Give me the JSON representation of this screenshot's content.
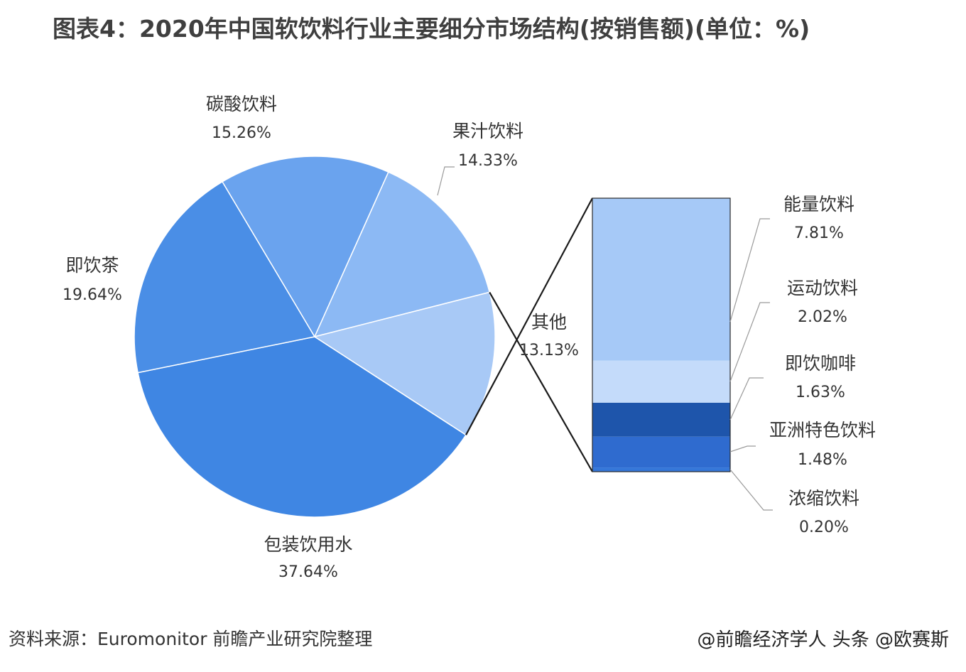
{
  "title": "图表4：2020年中国软饮料行业主要细分市场结构(按销售额)(单位：%)",
  "source": "资料来源：Euromonitor 前瞻产业研究院整理",
  "credit": "@前瞻经济学人 头条 @欧赛斯",
  "chart_data": {
    "type": "pie",
    "pie": {
      "slices": [
        {
          "label": "包装饮用水",
          "value": 37.64,
          "value_text": "37.64%",
          "color": "#3f86e3"
        },
        {
          "label": "即饮茶",
          "value": 19.64,
          "value_text": "19.64%",
          "color": "#4a8ee6"
        },
        {
          "label": "碳酸饮料",
          "value": 15.26,
          "value_text": "15.26%",
          "color": "#6aa3ee"
        },
        {
          "label": "果汁饮料",
          "value": 14.33,
          "value_text": "14.33%",
          "color": "#8cb9f4"
        },
        {
          "label": "其他",
          "value": 13.13,
          "value_text": "13.13%",
          "color": "#a8c9f6"
        }
      ]
    },
    "breakdown": {
      "of": "其他",
      "type": "stacked_bar",
      "segments": [
        {
          "label": "能量饮料",
          "value": 7.81,
          "value_text": "7.81%",
          "color": "#a6c9f7"
        },
        {
          "label": "运动饮料",
          "value": 2.02,
          "value_text": "2.02%",
          "color": "#c4dbfa"
        },
        {
          "label": "即饮咖啡",
          "value": 1.63,
          "value_text": "1.63%",
          "color": "#1e55ab"
        },
        {
          "label": "亚洲特色饮料",
          "value": 1.48,
          "value_text": "1.48%",
          "color": "#2f6bcf"
        },
        {
          "label": "浓缩饮料",
          "value": 0.2,
          "value_text": "0.20%",
          "color": "#3577d9"
        }
      ]
    }
  }
}
